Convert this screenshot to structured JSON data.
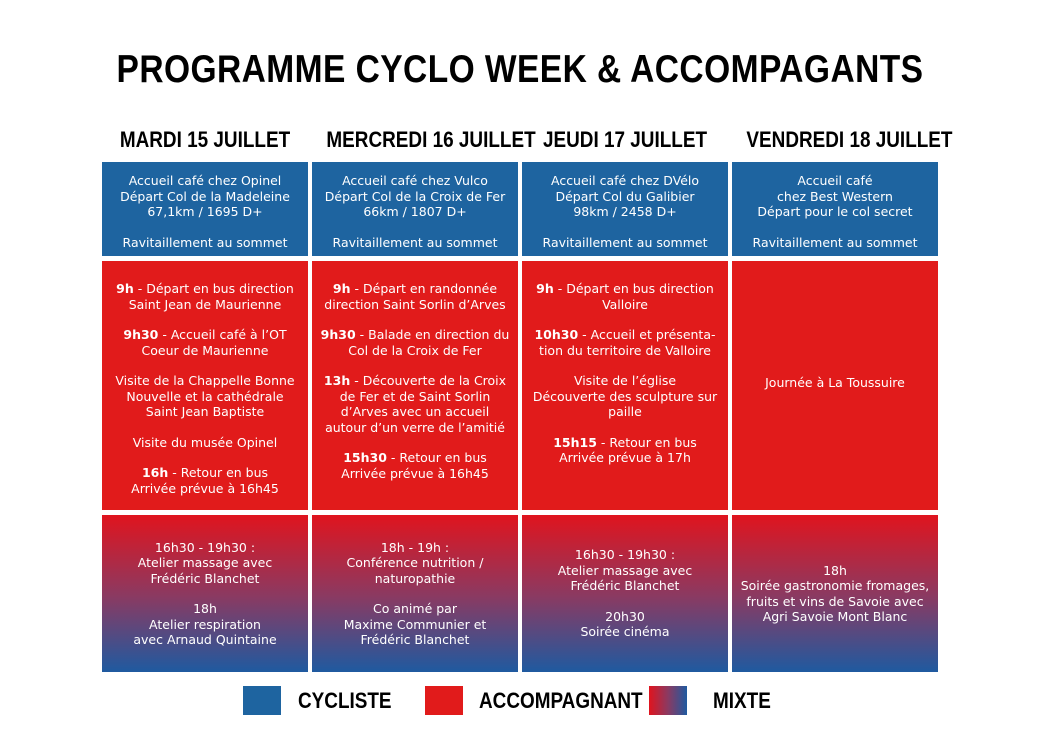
{
  "title": "PROGRAMME CYCLO WEEK & ACCOMPAGANTS",
  "days": [
    {
      "header": "MARDI 15 JUILLET",
      "cycliste": {
        "lines": "Accueil café chez Opinel\nDépart Col de la Madeleine\n67,1km / 1695 D+",
        "ravito": "Ravitaillement au sommet"
      },
      "accompagnant": [
        {
          "time": "9h",
          "text": "Départ en bus direction\nSaint Jean de Maurienne"
        },
        {
          "time": "9h30",
          "text": "Accueil café à l’OT\nCoeur de Maurienne"
        },
        {
          "time": "",
          "text": "Visite de la Chappelle Bonne\nNouvelle et la cathédrale\nSaint Jean Baptiste"
        },
        {
          "time": "",
          "text": "Visite du musée Opinel"
        },
        {
          "time": "16h",
          "text": "Retour en bus\nArrivée prévue à 16h45"
        }
      ],
      "mixte": [
        "16h30 - 19h30 :\nAtelier massage avec\nFrédéric Blanchet",
        "18h\nAtelier respiration\navec Arnaud Quintaine"
      ]
    },
    {
      "header": "MERCREDI 16 JUILLET",
      "cycliste": {
        "lines": "Accueil café chez Vulco\nDépart Col de la Croix de Fer\n66km / 1807 D+",
        "ravito": "Ravitaillement au sommet"
      },
      "accompagnant": [
        {
          "time": "9h",
          "text": "Départ en randonnée\ndirection Saint Sorlin d’Arves"
        },
        {
          "time": "9h30",
          "text": "Balade en direction du\nCol de la Croix de Fer"
        },
        {
          "time": "13h",
          "text": "Découverte de la Croix\nde Fer et de Saint Sorlin\nd’Arves avec un accueil\nautour d’un verre de l’amitié"
        },
        {
          "time": "15h30",
          "text": "Retour en bus\nArrivée prévue à 16h45"
        }
      ],
      "mixte": [
        "18h - 19h :\nConférence nutrition /\nnaturopathie",
        "Co animé par\nMaxime Communier et\nFrédéric Blanchet"
      ]
    },
    {
      "header": "JEUDI 17 JUILLET",
      "cycliste": {
        "lines": "Accueil café chez DVélo\nDépart Col du Galibier\n98km / 2458 D+",
        "ravito": "Ravitaillement au sommet"
      },
      "accompagnant": [
        {
          "time": "9h",
          "text": "Départ en bus direction\nValloire"
        },
        {
          "time": "10h30",
          "text": "Accueil et présenta-\ntion du territoire de Valloire"
        },
        {
          "time": "",
          "text": "Visite de l’église\nDécouverte des sculpture sur\npaille"
        },
        {
          "time": "15h15",
          "text": "Retour en bus\nArrivée prévue à 17h"
        }
      ],
      "mixte": [
        "16h30 - 19h30 :\nAtelier massage avec\nFrédéric Blanchet",
        "20h30\nSoirée cinéma"
      ]
    },
    {
      "header": "VENDREDI 18 JUILLET",
      "cycliste": {
        "lines": "Accueil café\nchez Best Western\nDépart pour le col secret",
        "ravito": "Ravitaillement au sommet"
      },
      "accompagnant": [
        {
          "time": "",
          "text": "Journée à La Toussuire"
        }
      ],
      "mixte": [
        "18h\nSoirée gastronomie fromages,\nfruits et vins de Savoie avec\nAgri Savoie Mont Blanc"
      ]
    }
  ],
  "legend": [
    {
      "label": "CYCLISTE",
      "color": "#1e64a0"
    },
    {
      "label": "ACCOMPAGNANT",
      "color": "#e11b1b"
    },
    {
      "label": "MIXTE",
      "color": "gradient"
    }
  ]
}
